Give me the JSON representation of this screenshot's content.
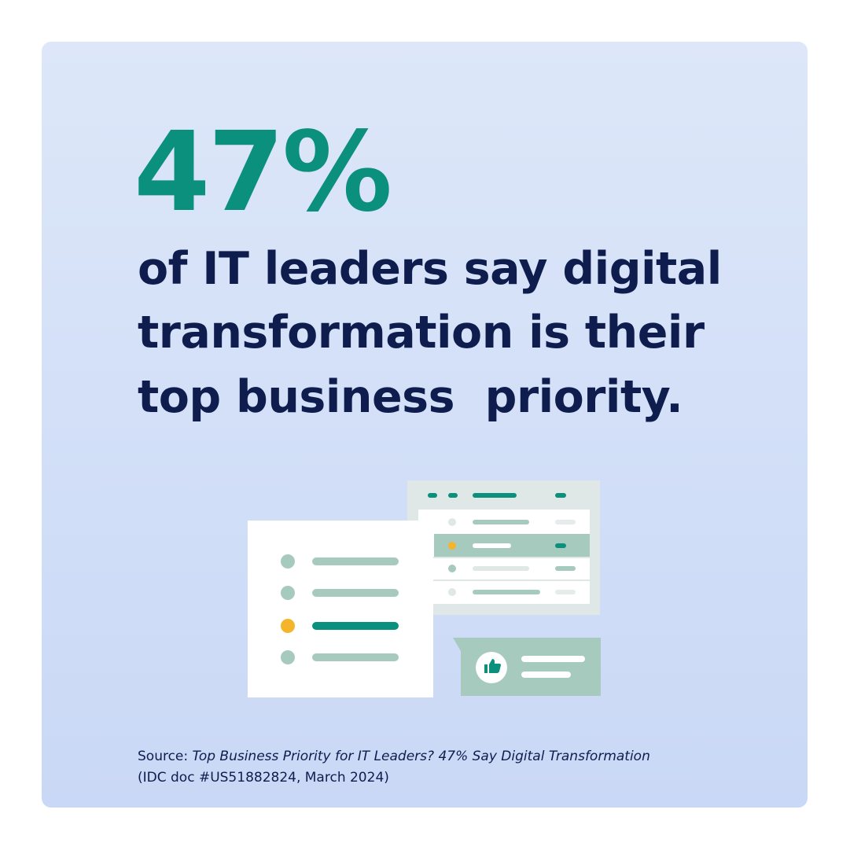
{
  "stat": "47%",
  "headline": [
    "of IT leaders say digital",
    "transformation is their",
    "top business  priority."
  ],
  "source": {
    "label": "Source:",
    "title": "Top Business Priority for IT Leaders? 47% Say Digital Transformation",
    "citation": "(IDC doc #US51882824, March 2024)"
  }
}
